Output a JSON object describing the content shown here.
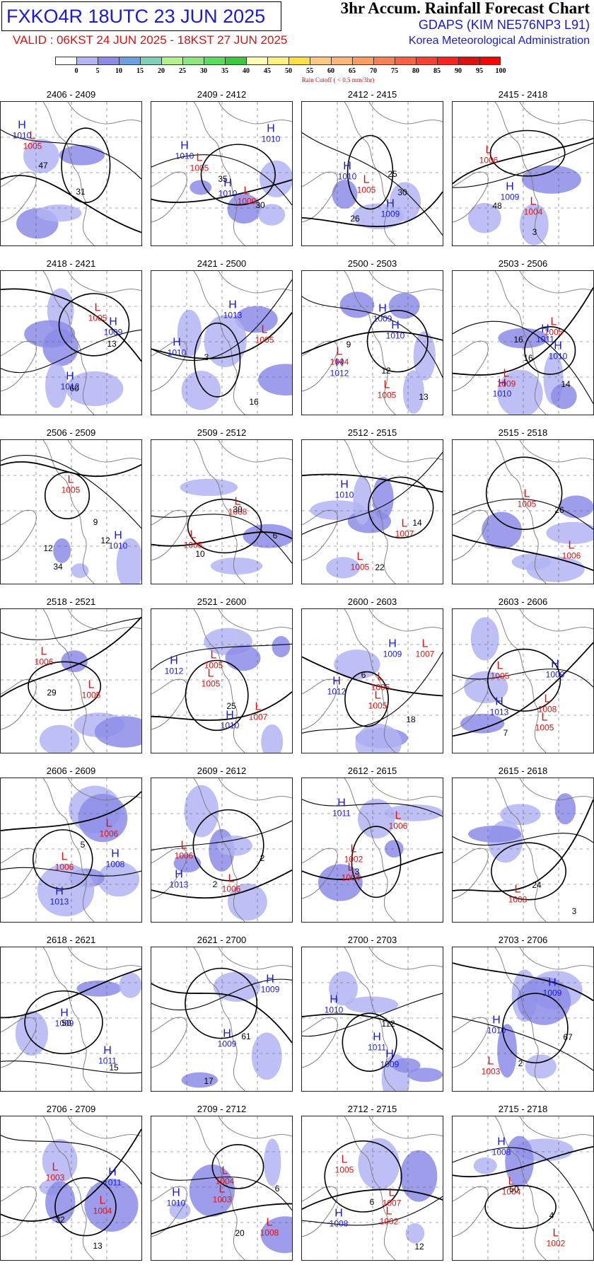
{
  "header": {
    "code": "FXKO4R 18UTC 23 JUN 2025",
    "valid": "VALID : 06KST 24 JUN 2025 - 18KST 27 JUN 2025",
    "title": "3hr Accum. Rainfall Forecast Chart",
    "model": "GDAPS (KIM NE576NP3 L91)",
    "org": "Korea Meteorological Administration"
  },
  "legend": {
    "labels": [
      "0",
      "5",
      "10",
      "15",
      "20",
      "25",
      "30",
      "35",
      "40",
      "45",
      "50",
      "55",
      "60",
      "65",
      "70",
      "75",
      "80",
      "85",
      "90",
      "95",
      "100"
    ],
    "colors": [
      "#ffffff",
      "#b3b4f2",
      "#8c8ce8",
      "#6e9fe0",
      "#80d0b8",
      "#b4f08c",
      "#8ce87c",
      "#5cdc5c",
      "#3cc83c",
      "#ffffb4",
      "#fff080",
      "#ffe040",
      "#ffc880",
      "#ffb478",
      "#ff9c60",
      "#ff8050",
      "#ff6040",
      "#ff4030",
      "#ff2020",
      "#e01010",
      "#ff0000"
    ],
    "cutoff": "Rain Cutoff ( < 0.5 mm/3hr)"
  },
  "colors": {
    "high": "#1a1ad6",
    "low": "#e01010",
    "rain_light": "#b3b4f2",
    "rain_mid": "#8c8ce8"
  },
  "panels": [
    {
      "title": "2406 - 2409",
      "max": [
        "47",
        "31"
      ],
      "highs": [
        "1010"
      ],
      "lows": [
        "1005"
      ]
    },
    {
      "title": "2409 - 2412",
      "max": [
        "35",
        "30"
      ],
      "highs": [
        "1010",
        "1010",
        "1010"
      ],
      "lows": [
        "1005",
        "1009"
      ]
    },
    {
      "title": "2412 - 2415",
      "max": [
        "30",
        "26",
        "25"
      ],
      "highs": [
        "1010",
        "1009"
      ],
      "lows": [
        "1005"
      ]
    },
    {
      "title": "2415 - 2418",
      "max": [
        "48",
        "3"
      ],
      "highs": [
        "1009"
      ],
      "lows": [
        "1004",
        "1006"
      ]
    },
    {
      "title": "2418 - 2421",
      "max": [
        "60",
        "13"
      ],
      "highs": [
        "1012",
        "1009"
      ],
      "lows": [
        "1005"
      ]
    },
    {
      "title": "2421 - 2500",
      "max": [
        "16",
        "3"
      ],
      "highs": [
        "1013",
        "1010"
      ],
      "lows": [
        "1005"
      ]
    },
    {
      "title": "2500 - 2503",
      "max": [
        "9",
        "12",
        "13"
      ],
      "highs": [
        "1010",
        "1012",
        "1009"
      ],
      "lows": [
        "1004",
        "1005"
      ]
    },
    {
      "title": "2503 - 2506",
      "max": [
        "16",
        "14",
        "16"
      ],
      "highs": [
        "1010",
        "1010",
        "1011"
      ],
      "lows": [
        "1009",
        "1005"
      ]
    },
    {
      "title": "2506 - 2509",
      "max": [
        "12",
        "34",
        "9",
        "12"
      ],
      "highs": [
        "1010"
      ],
      "lows": [
        "1005"
      ]
    },
    {
      "title": "2509 - 2512",
      "max": [
        "10",
        "30",
        "6"
      ],
      "highs": [],
      "lows": [
        "1008",
        "1005"
      ]
    },
    {
      "title": "2512 - 2515",
      "max": [
        "22",
        "14"
      ],
      "highs": [
        "1010"
      ],
      "lows": [
        "1007",
        "1005"
      ]
    },
    {
      "title": "2515 - 2518",
      "max": [
        "26"
      ],
      "highs": [],
      "lows": [
        "1006",
        "1005"
      ]
    },
    {
      "title": "2518 - 2521",
      "max": [
        "29"
      ],
      "highs": [],
      "lows": [
        "1006",
        "1005"
      ]
    },
    {
      "title": "2521 - 2600",
      "max": [
        "25"
      ],
      "highs": [
        "1010",
        "1012"
      ],
      "lows": [
        "1005",
        "1007",
        "1005"
      ]
    },
    {
      "title": "2600 - 2603",
      "max": [
        "18",
        "6"
      ],
      "highs": [
        "1009",
        "1012"
      ],
      "lows": [
        "1005",
        "1007",
        "1005"
      ]
    },
    {
      "title": "2603 - 2606",
      "max": [
        "7"
      ],
      "highs": [
        "1009",
        "1013"
      ],
      "lows": [
        "1005",
        "1005",
        "1008"
      ]
    },
    {
      "title": "2606 - 2609",
      "max": [
        "5"
      ],
      "highs": [
        "1008",
        "1013"
      ],
      "lows": [
        "1006",
        "1006"
      ]
    },
    {
      "title": "2609 - 2612",
      "max": [
        "2",
        "2"
      ],
      "highs": [
        "1013"
      ],
      "lows": [
        "1006",
        "1006"
      ]
    },
    {
      "title": "2612 - 2615",
      "max": [
        "3"
      ],
      "highs": [
        "1011"
      ],
      "lows": [
        "1004",
        "1006",
        "1002"
      ]
    },
    {
      "title": "2615 - 2618",
      "max": [
        "24",
        "3"
      ],
      "highs": [],
      "lows": [
        "1008"
      ]
    },
    {
      "title": "2618 - 2621",
      "max": [
        "15",
        "50"
      ],
      "highs": [
        "1009",
        "1011"
      ],
      "lows": []
    },
    {
      "title": "2621 - 2700",
      "max": [
        "17",
        "61"
      ],
      "highs": [
        "1009",
        "1009"
      ],
      "lows": []
    },
    {
      "title": "2700 - 2703",
      "max": [
        "112"
      ],
      "highs": [
        "1009",
        "1010",
        "1011"
      ],
      "lows": []
    },
    {
      "title": "2703 - 2706",
      "max": [
        "67",
        "2"
      ],
      "highs": [
        "1009",
        "1010"
      ],
      "lows": [
        "1003"
      ]
    },
    {
      "title": "2706 - 2709",
      "max": [
        "32",
        "13"
      ],
      "highs": [
        "1011"
      ],
      "lows": [
        "1003",
        "1004"
      ]
    },
    {
      "title": "2709 - 2712",
      "max": [
        "20",
        "6"
      ],
      "highs": [
        "1010"
      ],
      "lows": [
        "1003",
        "1008",
        "1004"
      ]
    },
    {
      "title": "2712 - 2715",
      "max": [
        "12",
        "6"
      ],
      "highs": [
        "1008"
      ],
      "lows": [
        "1002",
        "1005",
        "1007"
      ]
    },
    {
      "title": "2715 - 2718",
      "max": [
        "50",
        "4"
      ],
      "highs": [
        "1008"
      ],
      "lows": [
        "1002",
        "1004"
      ]
    }
  ]
}
